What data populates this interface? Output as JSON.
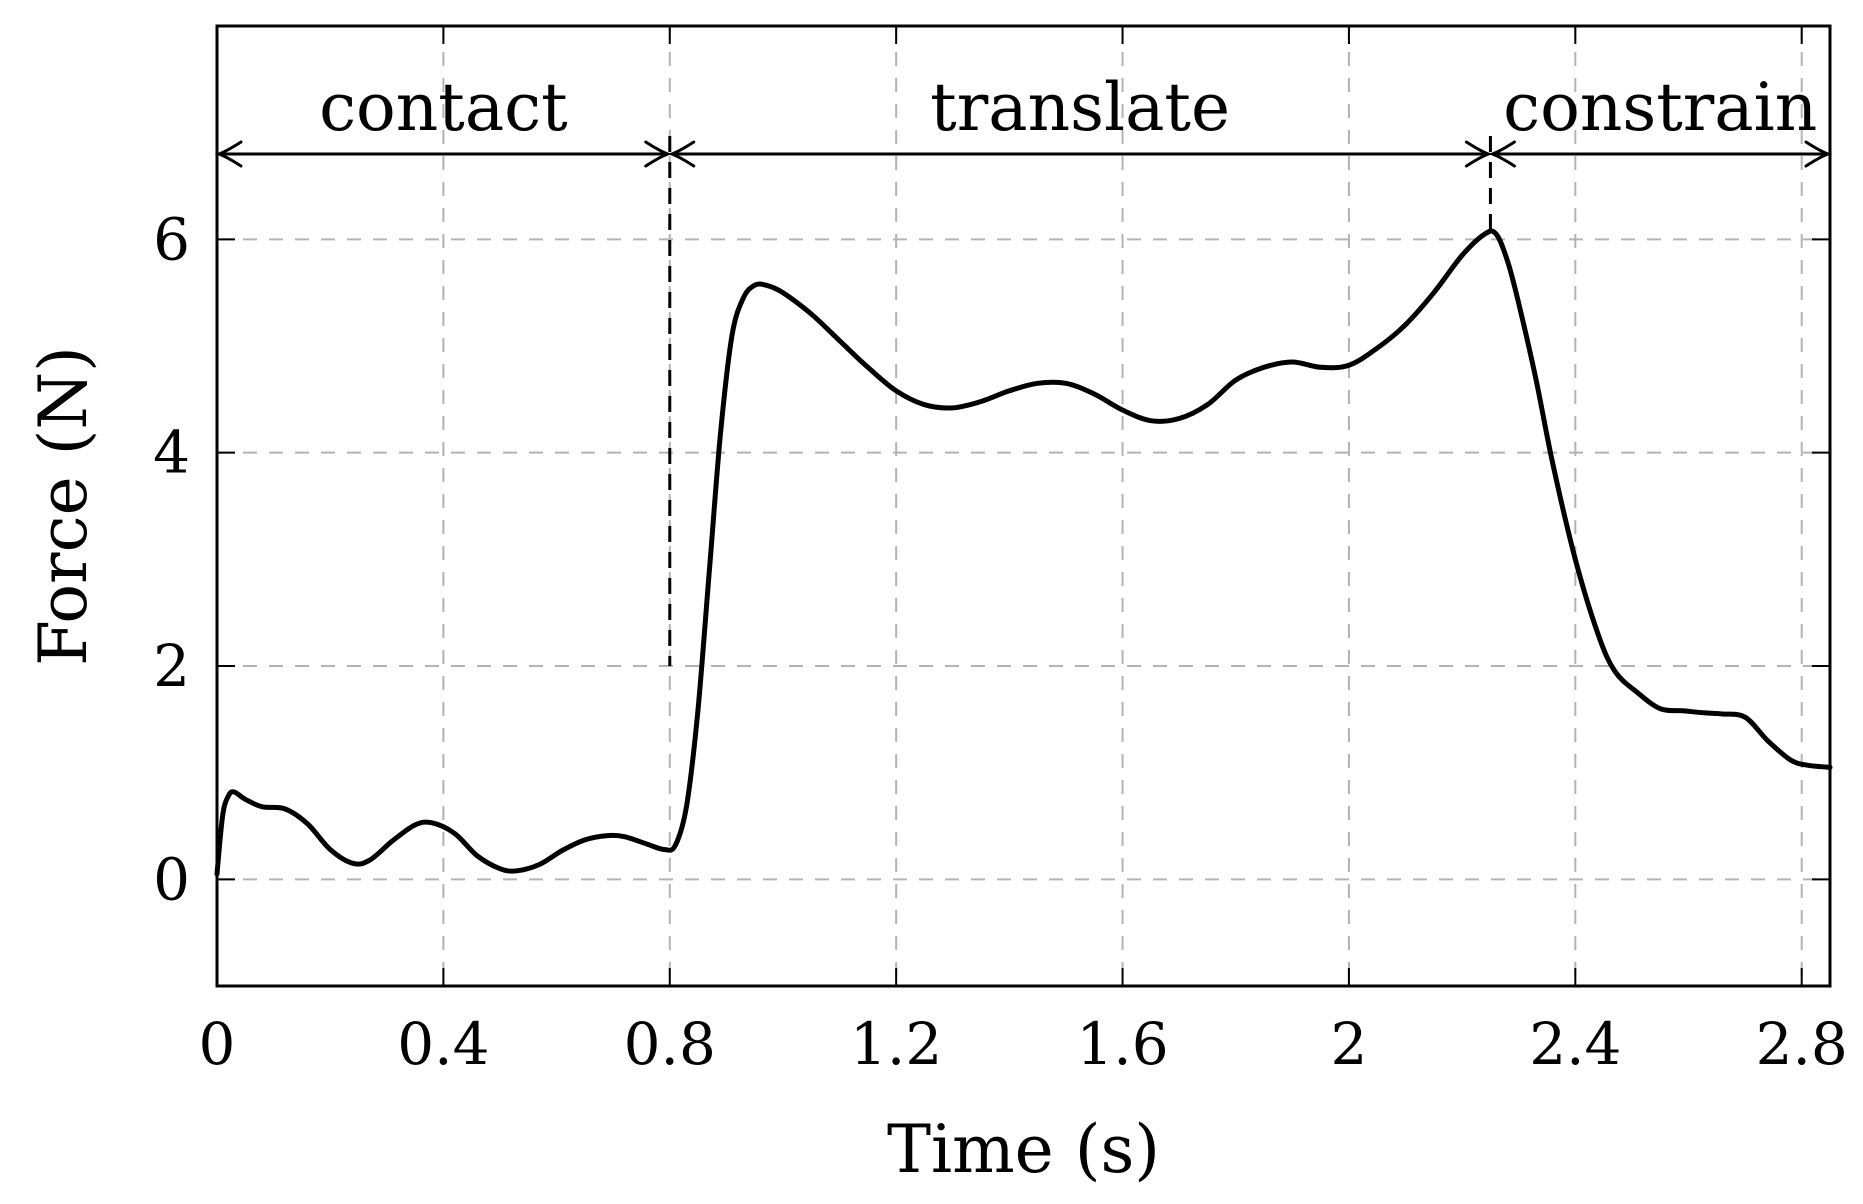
{
  "chart_data": {
    "type": "line",
    "xlabel": "Time (s)",
    "ylabel": "Force (N)",
    "xlim": [
      0,
      2.85
    ],
    "ylim": [
      -1,
      8
    ],
    "x_ticks": [
      0,
      0.4,
      0.8,
      1.2,
      1.6,
      2,
      2.4,
      2.8
    ],
    "x_tick_labels": [
      "0",
      "0.4",
      "0.8",
      "1.2",
      "1.6",
      "2",
      "2.4",
      "2.8"
    ],
    "y_ticks": [
      0,
      2,
      4,
      6
    ],
    "y_tick_labels": [
      "0",
      "2",
      "4",
      "6"
    ],
    "grid": true,
    "grid_style": "dashed",
    "line_color": "#000000",
    "phases": [
      {
        "label": "contact",
        "x_start": 0,
        "x_end": 0.8
      },
      {
        "label": "translate",
        "x_start": 0.8,
        "x_end": 2.25
      },
      {
        "label": "constrain",
        "x_start": 2.25,
        "x_end": 2.85
      }
    ],
    "phase_arrow_y": 6.8,
    "phase_boundaries": [
      {
        "x": 0.8,
        "y_top": 6.8,
        "y_bottom": 2.0
      },
      {
        "x": 2.25,
        "y_top": 6.8,
        "y_bottom": 6.05
      }
    ],
    "series": [
      {
        "x": [
          0,
          0.01,
          0.02,
          0.03,
          0.05,
          0.08,
          0.12,
          0.16,
          0.2,
          0.24,
          0.27,
          0.31,
          0.35,
          0.38,
          0.42,
          0.46,
          0.5,
          0.53,
          0.57,
          0.61,
          0.65,
          0.69,
          0.72,
          0.76,
          0.79,
          0.81,
          0.83,
          0.85,
          0.87,
          0.89,
          0.91,
          0.93,
          0.95,
          0.97,
          1.0,
          1.05,
          1.1,
          1.15,
          1.2,
          1.25,
          1.3,
          1.35,
          1.4,
          1.45,
          1.5,
          1.55,
          1.6,
          1.65,
          1.7,
          1.75,
          1.8,
          1.85,
          1.9,
          1.95,
          2.0,
          2.05,
          2.1,
          2.15,
          2.2,
          2.24,
          2.26,
          2.28,
          2.3,
          2.33,
          2.36,
          2.4,
          2.44,
          2.47,
          2.51,
          2.55,
          2.59,
          2.63,
          2.66,
          2.7,
          2.74,
          2.78,
          2.81,
          2.85
        ],
        "y": [
          0.05,
          0.6,
          0.78,
          0.82,
          0.75,
          0.68,
          0.66,
          0.52,
          0.28,
          0.15,
          0.18,
          0.36,
          0.51,
          0.53,
          0.43,
          0.22,
          0.1,
          0.08,
          0.14,
          0.27,
          0.37,
          0.41,
          0.4,
          0.33,
          0.28,
          0.32,
          0.7,
          1.6,
          2.9,
          4.2,
          5.1,
          5.45,
          5.57,
          5.57,
          5.5,
          5.3,
          5.05,
          4.8,
          4.58,
          4.45,
          4.42,
          4.48,
          4.58,
          4.65,
          4.65,
          4.55,
          4.4,
          4.3,
          4.32,
          4.45,
          4.68,
          4.8,
          4.85,
          4.8,
          4.82,
          4.98,
          5.2,
          5.5,
          5.85,
          6.05,
          6.05,
          5.8,
          5.4,
          4.7,
          3.9,
          3.0,
          2.3,
          1.95,
          1.75,
          1.6,
          1.58,
          1.56,
          1.55,
          1.52,
          1.3,
          1.12,
          1.07,
          1.05
        ]
      }
    ]
  }
}
